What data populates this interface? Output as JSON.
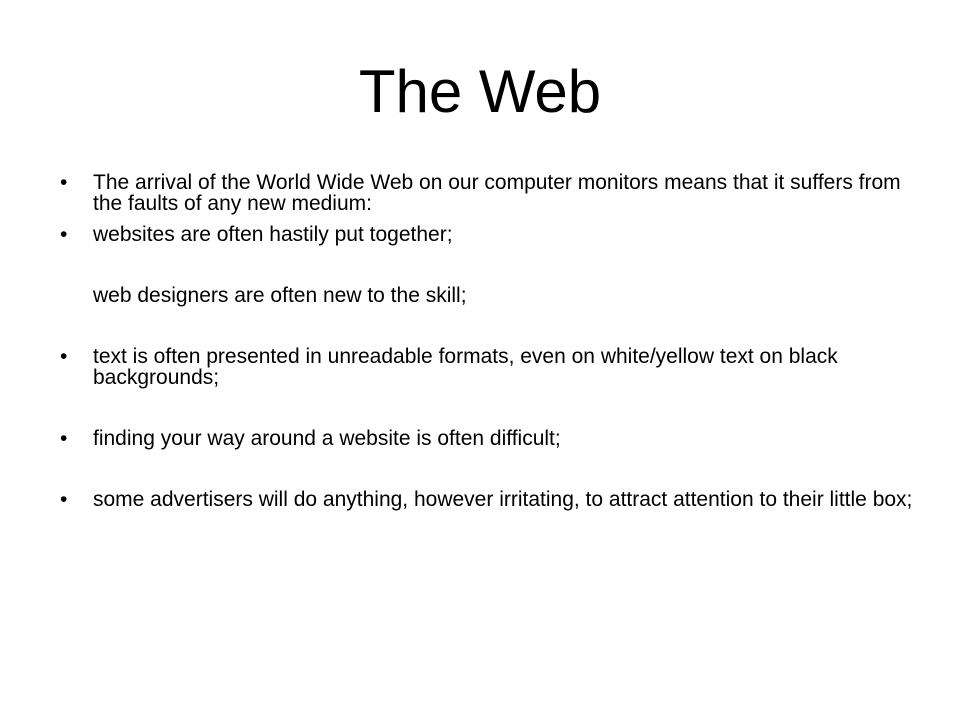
{
  "slide": {
    "title": "The Web",
    "bullet_glyph": "•",
    "bullets": [
      {
        "text": "The arrival of the World Wide Web on our computer monitors means that it suffers from the faults of any new medium:"
      },
      {
        "text": "websites are often hastily put together;",
        "subline": "web designers are often new to the skill;"
      },
      {
        "text": "text is often presented in unreadable formats, even on white/yellow text on black backgrounds;"
      },
      {
        "text": "finding your way around a website is often difficult;"
      },
      {
        "text": "some advertisers will do anything, however irritating, to attract attention to their little box;"
      }
    ]
  }
}
